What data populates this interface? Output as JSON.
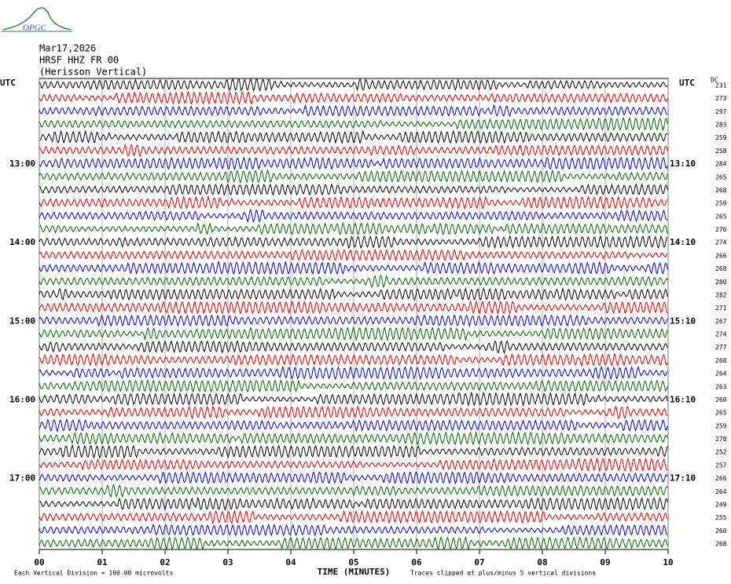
{
  "header": {
    "logo": "OPGC",
    "date": "Mar17,2026",
    "station": "HRSF HHZ FR 00",
    "location": "(Herisson Vertical)"
  },
  "plot": {
    "left_title": "UTC",
    "right_title": "UTC",
    "dc_title": "DC",
    "x_label": "TIME (MINUTES)",
    "scale_note": "Each Vertical Division =  100.00 microvolts",
    "clip_note": "Traces clipped at plus/minus 5 vertical divisions",
    "xlim": [
      0,
      10
    ],
    "xticks": [
      {
        "value": 0,
        "label": "00"
      },
      {
        "value": 1,
        "label": "01"
      },
      {
        "value": 2,
        "label": "02"
      },
      {
        "value": 3,
        "label": "03"
      },
      {
        "value": 4,
        "label": "04"
      },
      {
        "value": 5,
        "label": "05"
      },
      {
        "value": 6,
        "label": "06"
      },
      {
        "value": 7,
        "label": "07"
      },
      {
        "value": 8,
        "label": "08"
      },
      {
        "value": 9,
        "label": "09"
      },
      {
        "value": 10,
        "label": "10"
      }
    ],
    "traces": [
      {
        "color": "#000000",
        "dc": "231",
        "left": null,
        "right": null
      },
      {
        "color": "#e00000",
        "dc": "273",
        "left": null,
        "right": null
      },
      {
        "color": "#0000d0",
        "dc": "297",
        "left": null,
        "right": null
      },
      {
        "color": "#006400",
        "dc": "283",
        "left": null,
        "right": null
      },
      {
        "color": "#000000",
        "dc": "259",
        "left": null,
        "right": null
      },
      {
        "color": "#e00000",
        "dc": "258",
        "left": null,
        "right": null
      },
      {
        "color": "#0000d0",
        "dc": "284",
        "left": "13:00",
        "right": "13:10"
      },
      {
        "color": "#006400",
        "dc": "265",
        "left": null,
        "right": null
      },
      {
        "color": "#000000",
        "dc": "268",
        "left": null,
        "right": null
      },
      {
        "color": "#e00000",
        "dc": "259",
        "left": null,
        "right": null
      },
      {
        "color": "#0000d0",
        "dc": "265",
        "left": null,
        "right": null
      },
      {
        "color": "#006400",
        "dc": "276",
        "left": null,
        "right": null
      },
      {
        "color": "#000000",
        "dc": "274",
        "left": "14:00",
        "right": "14:10"
      },
      {
        "color": "#e00000",
        "dc": "266",
        "left": null,
        "right": null
      },
      {
        "color": "#0000d0",
        "dc": "268",
        "left": null,
        "right": null
      },
      {
        "color": "#006400",
        "dc": "280",
        "left": null,
        "right": null
      },
      {
        "color": "#000000",
        "dc": "282",
        "left": null,
        "right": null
      },
      {
        "color": "#e00000",
        "dc": "271",
        "left": null,
        "right": null
      },
      {
        "color": "#0000d0",
        "dc": "267",
        "left": "15:00",
        "right": "15:10"
      },
      {
        "color": "#006400",
        "dc": "274",
        "left": null,
        "right": null
      },
      {
        "color": "#000000",
        "dc": "277",
        "left": null,
        "right": null
      },
      {
        "color": "#e00000",
        "dc": "268",
        "left": null,
        "right": null
      },
      {
        "color": "#0000d0",
        "dc": "264",
        "left": null,
        "right": null
      },
      {
        "color": "#006400",
        "dc": "263",
        "left": null,
        "right": null
      },
      {
        "color": "#000000",
        "dc": "260",
        "left": "16:00",
        "right": "16:10"
      },
      {
        "color": "#e00000",
        "dc": "265",
        "left": null,
        "right": null
      },
      {
        "color": "#0000d0",
        "dc": "259",
        "left": null,
        "right": null
      },
      {
        "color": "#006400",
        "dc": "278",
        "left": null,
        "right": null
      },
      {
        "color": "#000000",
        "dc": "252",
        "left": null,
        "right": null
      },
      {
        "color": "#e00000",
        "dc": "257",
        "left": null,
        "right": null
      },
      {
        "color": "#0000d0",
        "dc": "266",
        "left": "17:00",
        "right": "17:10"
      },
      {
        "color": "#006400",
        "dc": "264",
        "left": null,
        "right": null
      },
      {
        "color": "#000000",
        "dc": "249",
        "left": null,
        "right": null
      },
      {
        "color": "#e00000",
        "dc": "255",
        "left": null,
        "right": null
      },
      {
        "color": "#0000d0",
        "dc": "260",
        "left": null,
        "right": null
      },
      {
        "color": "#006400",
        "dc": "268",
        "left": null,
        "right": null
      }
    ]
  }
}
